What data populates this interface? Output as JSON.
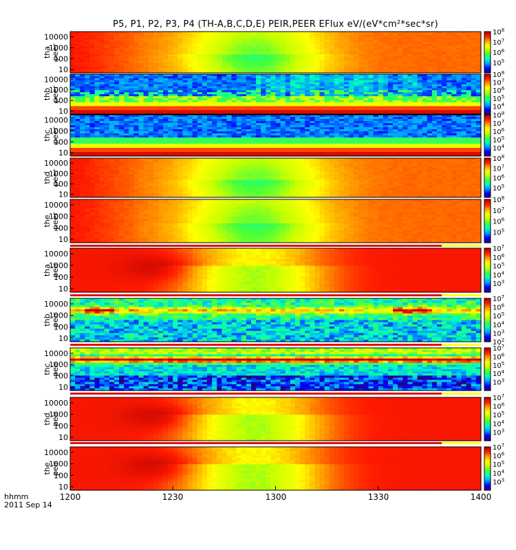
{
  "chart_data": {
    "type": "heatmap",
    "title": "P5, P1, P2, P3, P4 (TH-A,B,C,D,E) PEIR,PEER EFlux eV/(eV*cm²*sec*sr)",
    "x_tick_labels": [
      "1200",
      "1230",
      "1300",
      "1330",
      "1400"
    ],
    "x_tick_hours": [
      12.0,
      12.5,
      13.0,
      13.5,
      14.0
    ],
    "x_range_hours": [
      12.0,
      14.0
    ],
    "time_label": "hhmm",
    "date_label": "2011 Sep 14",
    "y_scale": "log",
    "panels": [
      {
        "id": "tha-peer",
        "label_top": "tha",
        "label_bottom": "peer",
        "ylim": [
          5,
          30000
        ],
        "y_tick_labels": [
          "10000",
          "1000",
          "100",
          "10"
        ],
        "y_tick_values": [
          10000,
          1000,
          100,
          10
        ],
        "color_range_exp": [
          4,
          8
        ],
        "color_tick_exps": [
          5,
          6,
          7,
          8
        ],
        "pattern": "electron-magnetosheath"
      },
      {
        "id": "thb-peer",
        "label_top": "thb",
        "label_bottom": "peer",
        "ylim": [
          5,
          30000
        ],
        "y_tick_labels": [
          "10000",
          "1000",
          "100",
          "10"
        ],
        "y_tick_values": [
          10000,
          1000,
          100,
          10
        ],
        "color_range_exp": [
          3,
          8
        ],
        "color_tick_exps": [
          4,
          5,
          6,
          7,
          8
        ],
        "pattern": "electron-solarwind"
      },
      {
        "id": "thc-peer",
        "label_top": "thc",
        "label_bottom": "peer",
        "ylim": [
          5,
          30000
        ],
        "y_tick_labels": [
          "10000",
          "1000",
          "100",
          "10"
        ],
        "y_tick_values": [
          10000,
          1000,
          100,
          10
        ],
        "color_range_exp": [
          3,
          8
        ],
        "color_tick_exps": [
          4,
          5,
          6,
          7,
          8
        ],
        "pattern": "electron-solarwind-steady"
      },
      {
        "id": "thd-peer",
        "label_top": "thd",
        "label_bottom": "peer",
        "ylim": [
          5,
          30000
        ],
        "y_tick_labels": [
          "10000",
          "1000",
          "100",
          "10"
        ],
        "y_tick_values": [
          10000,
          1000,
          100,
          10
        ],
        "color_range_exp": [
          4,
          8
        ],
        "color_tick_exps": [
          5,
          6,
          7,
          8
        ],
        "pattern": "electron-magnetosheath"
      },
      {
        "id": "the-peer",
        "label_top": "the",
        "label_bottom": "peer",
        "ylim": [
          5,
          30000
        ],
        "y_tick_labels": [
          "10000",
          "1000",
          "100",
          "10"
        ],
        "y_tick_values": [
          10000,
          1000,
          100,
          10
        ],
        "color_range_exp": [
          4,
          8
        ],
        "color_tick_exps": [
          5,
          6,
          7,
          8
        ],
        "pattern": "electron-magnetosheath"
      },
      {
        "id": "tha-peir",
        "label_top": "tha",
        "label_bottom": "peir",
        "ylim": [
          5,
          30000
        ],
        "y_tick_labels": [
          "10000",
          "1000",
          "100",
          "10"
        ],
        "y_tick_values": [
          10000,
          1000,
          100,
          10
        ],
        "color_range_exp": [
          2,
          7
        ],
        "color_tick_exps": [
          3,
          4,
          5,
          6,
          7
        ],
        "pattern": "ion-magnetosheath"
      },
      {
        "id": "thb-peir",
        "label_top": "thb",
        "label_bottom": "peir",
        "ylim": [
          5,
          30000
        ],
        "y_tick_labels": [
          "10000",
          "1000",
          "100",
          "10"
        ],
        "y_tick_values": [
          10000,
          1000,
          100,
          10
        ],
        "color_range_exp": [
          2,
          7
        ],
        "color_tick_exps": [
          2,
          3,
          4,
          5,
          6,
          7
        ],
        "pattern": "ion-solarwind"
      },
      {
        "id": "thc-peir",
        "label_top": "thc",
        "label_bottom": "peir",
        "ylim": [
          5,
          30000
        ],
        "y_tick_labels": [
          "10000",
          "1000",
          "100",
          "10"
        ],
        "y_tick_values": [
          10000,
          1000,
          100,
          10
        ],
        "color_range_exp": [
          2,
          7
        ],
        "color_tick_exps": [
          3,
          4,
          5,
          6,
          7
        ],
        "pattern": "ion-solarwind-steady"
      },
      {
        "id": "thd-peir",
        "label_top": "thd",
        "label_bottom": "peir",
        "ylim": [
          5,
          30000
        ],
        "y_tick_labels": [
          "10000",
          "1000",
          "100",
          "10"
        ],
        "y_tick_values": [
          10000,
          1000,
          100,
          10
        ],
        "color_range_exp": [
          2,
          7
        ],
        "color_tick_exps": [
          3,
          4,
          5,
          6,
          7
        ],
        "pattern": "ion-magnetosheath"
      },
      {
        "id": "the-peir",
        "label_top": "the",
        "label_bottom": "peir",
        "ylim": [
          5,
          30000
        ],
        "y_tick_labels": [
          "10000",
          "1000",
          "100",
          "10"
        ],
        "y_tick_values": [
          10000,
          1000,
          100,
          10
        ],
        "color_range_exp": [
          2,
          7
        ],
        "color_tick_exps": [
          3,
          4,
          5,
          6,
          7
        ],
        "pattern": "ion-magnetosheath"
      }
    ],
    "colormap": [
      "#2a0078",
      "#0000ff",
      "#00a0ff",
      "#00ffc0",
      "#40ff40",
      "#c8ff00",
      "#ffff00",
      "#ff9900",
      "#ff1a00",
      "#b40000"
    ],
    "grid": false,
    "legend": "colorbar-right"
  }
}
